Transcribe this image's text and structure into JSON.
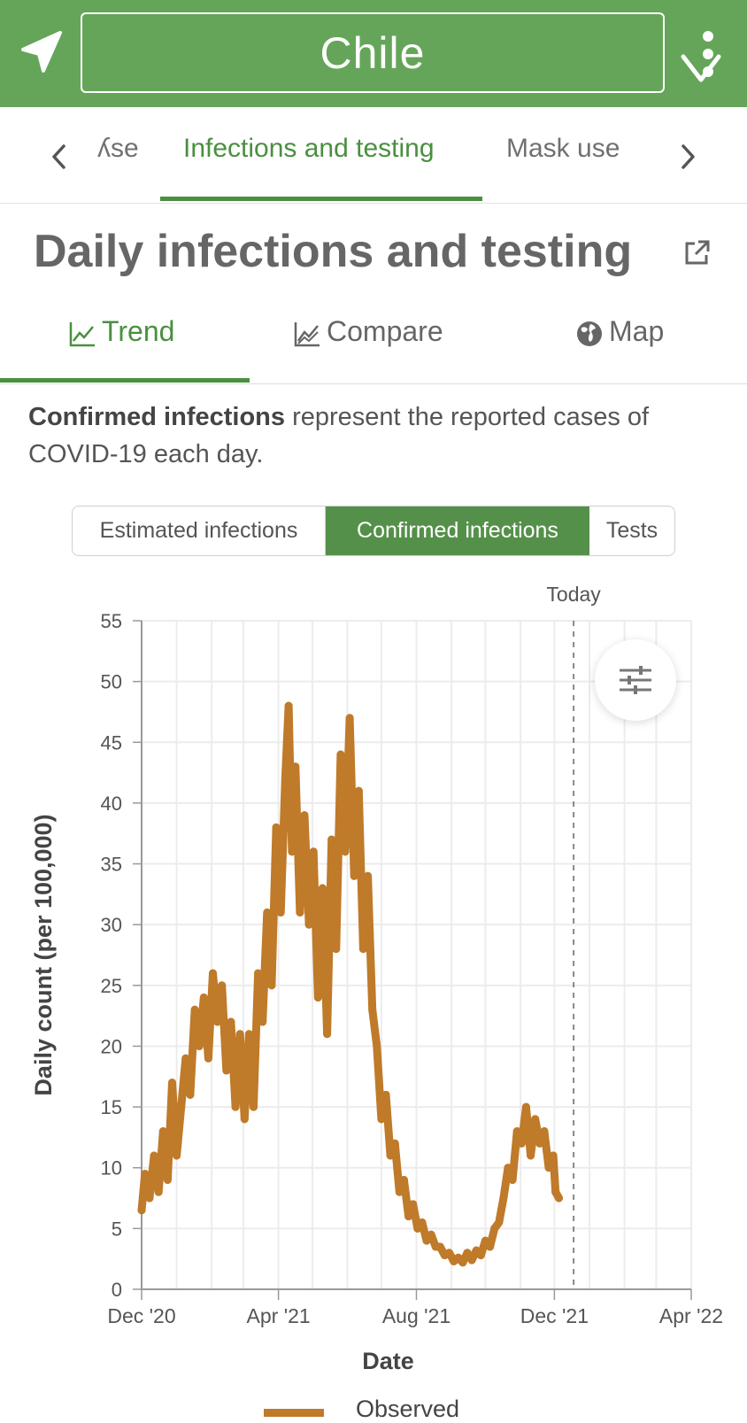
{
  "header": {
    "country": "Chile",
    "location_icon": "navigation-arrow-icon",
    "dropdown_icon": "chevron-down-icon",
    "menu_icon": "kebab-menu-icon",
    "color": "#65a559"
  },
  "section_tabs": {
    "items": [
      "ʎse",
      "Infections and testing",
      "Mask use"
    ],
    "active": "Infections and testing"
  },
  "heading": {
    "title": "Daily infections and testing",
    "icon": "external-link-icon"
  },
  "view_tabs": {
    "items": [
      {
        "label": "Trend",
        "icon": "line-chart-icon"
      },
      {
        "label": "Compare",
        "icon": "area-chart-icon"
      },
      {
        "label": "Map",
        "icon": "globe-icon"
      }
    ],
    "active": "Trend"
  },
  "description": {
    "bold": "Confirmed infections",
    "rest": " represent the reported cases of COVID-19 each day."
  },
  "segments": {
    "items": [
      "Estimated infections",
      "Confirmed infections",
      "Tests"
    ],
    "active": "Confirmed infections"
  },
  "chart_data": {
    "type": "line",
    "xlabel": "Date",
    "ylabel": "Daily count (per 100,000)",
    "ylim": [
      0,
      55
    ],
    "yticks": [
      0,
      5,
      10,
      15,
      20,
      25,
      30,
      35,
      40,
      45,
      50,
      55
    ],
    "x_range": [
      "2020-12-01",
      "2022-04-01"
    ],
    "xticks": [
      {
        "date": "2020-12-01",
        "label": "Dec '20"
      },
      {
        "date": "2021-04-01",
        "label": "Apr '21"
      },
      {
        "date": "2021-08-01",
        "label": "Aug '21"
      },
      {
        "date": "2021-12-01",
        "label": "Dec '21"
      },
      {
        "date": "2022-04-01",
        "label": "Apr '22"
      }
    ],
    "today": {
      "date": "2021-12-18",
      "label": "Today"
    },
    "grid": true,
    "series": [
      {
        "name": "Observed",
        "color": "#bf7a2a",
        "points": [
          [
            "2020-12-01",
            6.5
          ],
          [
            "2020-12-04",
            9.5
          ],
          [
            "2020-12-08",
            7.5
          ],
          [
            "2020-12-12",
            11
          ],
          [
            "2020-12-16",
            8
          ],
          [
            "2020-12-20",
            13
          ],
          [
            "2020-12-24",
            9
          ],
          [
            "2020-12-28",
            17
          ],
          [
            "2021-01-01",
            11
          ],
          [
            "2021-01-05",
            15
          ],
          [
            "2021-01-09",
            19
          ],
          [
            "2021-01-13",
            16
          ],
          [
            "2021-01-17",
            23
          ],
          [
            "2021-01-21",
            20
          ],
          [
            "2021-01-25",
            24
          ],
          [
            "2021-01-29",
            19
          ],
          [
            "2021-02-02",
            26
          ],
          [
            "2021-02-06",
            22
          ],
          [
            "2021-02-10",
            25
          ],
          [
            "2021-02-14",
            18
          ],
          [
            "2021-02-18",
            22
          ],
          [
            "2021-02-22",
            15
          ],
          [
            "2021-02-26",
            21
          ],
          [
            "2021-03-02",
            14
          ],
          [
            "2021-03-06",
            21
          ],
          [
            "2021-03-10",
            15
          ],
          [
            "2021-03-14",
            26
          ],
          [
            "2021-03-18",
            22
          ],
          [
            "2021-03-22",
            31
          ],
          [
            "2021-03-26",
            25
          ],
          [
            "2021-03-30",
            38
          ],
          [
            "2021-04-03",
            31
          ],
          [
            "2021-04-07",
            42
          ],
          [
            "2021-04-10",
            48
          ],
          [
            "2021-04-13",
            36
          ],
          [
            "2021-04-16",
            43
          ],
          [
            "2021-04-20",
            31
          ],
          [
            "2021-04-24",
            39
          ],
          [
            "2021-04-28",
            30
          ],
          [
            "2021-05-02",
            36
          ],
          [
            "2021-05-06",
            24
          ],
          [
            "2021-05-10",
            33
          ],
          [
            "2021-05-14",
            21
          ],
          [
            "2021-05-18",
            37
          ],
          [
            "2021-05-22",
            28
          ],
          [
            "2021-05-26",
            44
          ],
          [
            "2021-05-30",
            36
          ],
          [
            "2021-06-03",
            47
          ],
          [
            "2021-06-07",
            34
          ],
          [
            "2021-06-11",
            41
          ],
          [
            "2021-06-15",
            28
          ],
          [
            "2021-06-19",
            34
          ],
          [
            "2021-06-23",
            23
          ],
          [
            "2021-06-27",
            20
          ],
          [
            "2021-07-01",
            14
          ],
          [
            "2021-07-05",
            16
          ],
          [
            "2021-07-09",
            11
          ],
          [
            "2021-07-13",
            12
          ],
          [
            "2021-07-17",
            8
          ],
          [
            "2021-07-21",
            9
          ],
          [
            "2021-07-25",
            6
          ],
          [
            "2021-07-29",
            7
          ],
          [
            "2021-08-02",
            5
          ],
          [
            "2021-08-06",
            5.5
          ],
          [
            "2021-08-10",
            4
          ],
          [
            "2021-08-14",
            4.5
          ],
          [
            "2021-08-18",
            3.5
          ],
          [
            "2021-08-22",
            3.5
          ],
          [
            "2021-08-26",
            2.8
          ],
          [
            "2021-08-30",
            3
          ],
          [
            "2021-09-03",
            2.3
          ],
          [
            "2021-09-07",
            2.6
          ],
          [
            "2021-09-11",
            2.2
          ],
          [
            "2021-09-15",
            3
          ],
          [
            "2021-09-19",
            2.4
          ],
          [
            "2021-09-23",
            3.2
          ],
          [
            "2021-09-27",
            2.8
          ],
          [
            "2021-10-01",
            4
          ],
          [
            "2021-10-05",
            3.5
          ],
          [
            "2021-10-09",
            5
          ],
          [
            "2021-10-13",
            5.5
          ],
          [
            "2021-10-17",
            7.5
          ],
          [
            "2021-10-21",
            10
          ],
          [
            "2021-10-25",
            9
          ],
          [
            "2021-10-29",
            13
          ],
          [
            "2021-11-02",
            12
          ],
          [
            "2021-11-06",
            15
          ],
          [
            "2021-11-10",
            11
          ],
          [
            "2021-11-14",
            14
          ],
          [
            "2021-11-18",
            12
          ],
          [
            "2021-11-22",
            13
          ],
          [
            "2021-11-26",
            10
          ],
          [
            "2021-11-30",
            11
          ],
          [
            "2021-12-02",
            8
          ],
          [
            "2021-12-05",
            7.5
          ]
        ]
      }
    ]
  },
  "filter_button": {
    "icon": "sliders-icon"
  },
  "legend": {
    "label": "Observed"
  }
}
